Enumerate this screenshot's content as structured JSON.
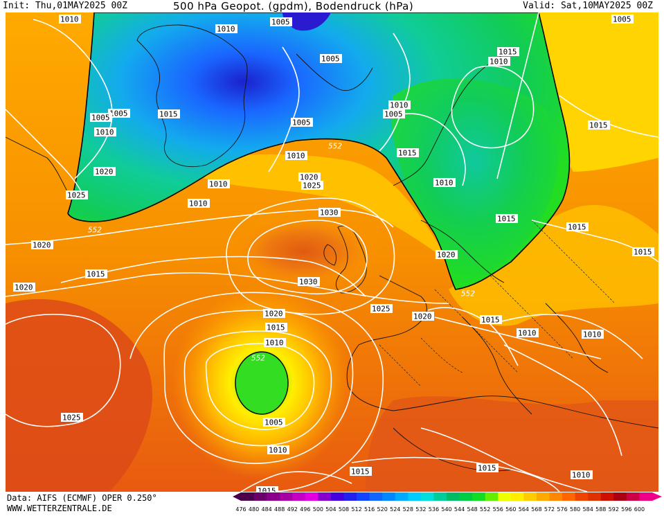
{
  "header": {
    "init": "Init: Thu,01MAY2025 00Z",
    "title": "500 hPa Geopot. (gpdm), Bodendruck (hPa)",
    "valid": "Valid: Sat,10MAY2025 00Z"
  },
  "footer": {
    "data_source": "Data: AIFS (ECMWF) OPER 0.250°",
    "website": "WWW.WETTERZENTRALE.DE"
  },
  "color_scale": {
    "labels": [
      "476",
      "480",
      "484",
      "488",
      "492",
      "496",
      "500",
      "504",
      "508",
      "512",
      "516",
      "520",
      "524",
      "528",
      "532",
      "536",
      "540",
      "544",
      "548",
      "552",
      "556",
      "560",
      "564",
      "568",
      "572",
      "576",
      "580",
      "584",
      "588",
      "592",
      "596",
      "600"
    ],
    "colors": [
      "#4a004a",
      "#6a006a",
      "#8a008a",
      "#a400a4",
      "#c400c4",
      "#e000e0",
      "#8800cc",
      "#4400dd",
      "#2222ee",
      "#1144ff",
      "#1166ff",
      "#0088ff",
      "#00aaff",
      "#00ccff",
      "#00dddd",
      "#00cc99",
      "#00bb66",
      "#00cc44",
      "#11dd22",
      "#66ee00",
      "#eeff00",
      "#ffee00",
      "#ffcc00",
      "#ffaa00",
      "#ff8800",
      "#ff6600",
      "#ee4400",
      "#dd3300",
      "#cc1100",
      "#aa0011",
      "#cc0044",
      "#ee0088"
    ]
  },
  "height_labels": [
    {
      "text": "552"
    },
    {
      "text": "552"
    },
    {
      "text": "552"
    },
    {
      "text": "552"
    }
  ],
  "pressure_labels": [
    {
      "text": "1010"
    },
    {
      "text": "1005"
    },
    {
      "text": "1010"
    },
    {
      "text": "1005"
    },
    {
      "text": "1015"
    },
    {
      "text": "1010"
    },
    {
      "text": "1005"
    },
    {
      "text": "1005"
    },
    {
      "text": "1005"
    },
    {
      "text": "1010"
    },
    {
      "text": "1015"
    },
    {
      "text": "1015"
    },
    {
      "text": "1010"
    },
    {
      "text": "1005"
    },
    {
      "text": "1010"
    },
    {
      "text": "1020"
    },
    {
      "text": "1010"
    },
    {
      "text": "1020"
    },
    {
      "text": "1025"
    },
    {
      "text": "1025"
    },
    {
      "text": "1010"
    },
    {
      "text": "1010"
    },
    {
      "text": "1030"
    },
    {
      "text": "1015"
    },
    {
      "text": "1015"
    },
    {
      "text": "1020"
    },
    {
      "text": "1020"
    },
    {
      "text": "1015"
    },
    {
      "text": "1015"
    },
    {
      "text": "1030"
    },
    {
      "text": "1020"
    },
    {
      "text": "1020"
    },
    {
      "text": "1025"
    },
    {
      "text": "1020"
    },
    {
      "text": "1015"
    },
    {
      "text": "1010"
    },
    {
      "text": "1010"
    },
    {
      "text": "1015"
    },
    {
      "text": "1010"
    },
    {
      "text": "1025"
    },
    {
      "text": "1005"
    },
    {
      "text": "1010"
    },
    {
      "text": "1015"
    },
    {
      "text": "1015"
    },
    {
      "text": "1010"
    },
    {
      "text": "1015"
    },
    {
      "text": "1005"
    },
    {
      "text": "1015"
    }
  ]
}
